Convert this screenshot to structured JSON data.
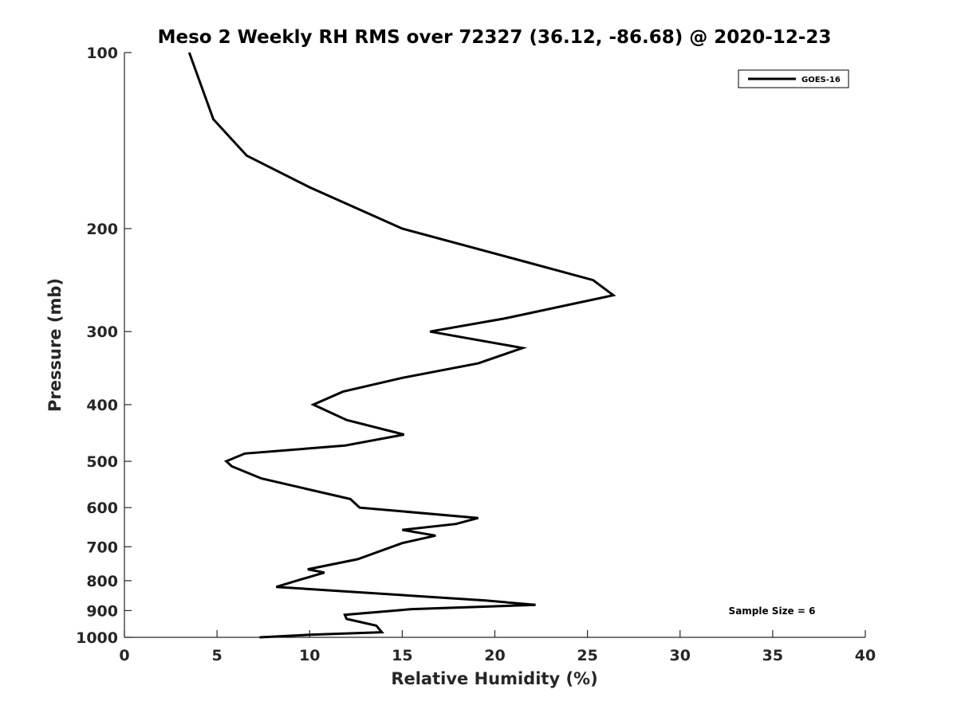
{
  "chart_data": {
    "type": "line",
    "title": "Meso 2 Weekly RH RMS over 72327 (36.12, -86.68) @ 2020-12-23",
    "xlabel": "Relative Humidity (%)",
    "ylabel": "Pressure (mb)",
    "xlim": [
      0,
      40
    ],
    "ylim": [
      100,
      1000
    ],
    "y_scale": "log",
    "y_reversed": true,
    "xticks": [
      0,
      5,
      10,
      15,
      20,
      25,
      30,
      35,
      40
    ],
    "yticks": [
      100,
      200,
      300,
      400,
      500,
      600,
      700,
      800,
      900,
      1000
    ],
    "grid": false,
    "legend_position": "top-right",
    "annotation": "Sample Size = 6",
    "series": [
      {
        "name": "GOES-16",
        "color": "#000000",
        "x": [
          3.5,
          4.8,
          6.6,
          10.0,
          15.0,
          21.0,
          25.3,
          26.4,
          20.5,
          16.5,
          21.5,
          19.1,
          15.0,
          11.8,
          10.2,
          12.0,
          15.1,
          11.9,
          6.5,
          5.5,
          5.8,
          7.4,
          12.2,
          12.7,
          19.1,
          17.9,
          15.0,
          16.8,
          15.0,
          12.6,
          9.9,
          10.8,
          9.3,
          8.2,
          19.5,
          22.2,
          15.5,
          11.9,
          12.0,
          13.6,
          13.9,
          10.0,
          7.3
        ],
        "y": [
          100,
          130,
          150,
          170,
          200,
          225,
          245,
          260,
          285,
          300,
          320,
          340,
          360,
          380,
          400,
          425,
          450,
          470,
          485,
          500,
          510,
          535,
          580,
          600,
          625,
          640,
          655,
          670,
          690,
          735,
          765,
          775,
          800,
          820,
          865,
          880,
          895,
          915,
          930,
          955,
          980,
          990,
          1000
        ]
      }
    ]
  }
}
